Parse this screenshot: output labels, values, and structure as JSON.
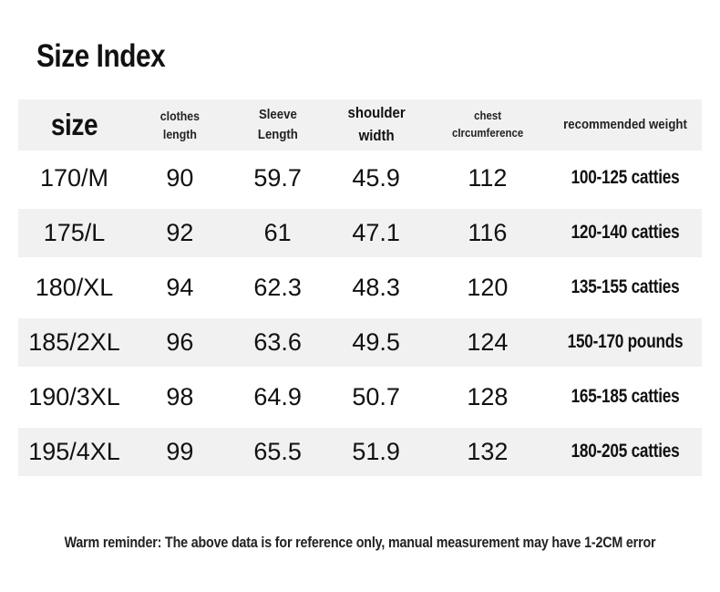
{
  "page": {
    "title": "Size Index",
    "footer_note": "Warm reminder: The above data is for reference only, manual measurement may have 1-2CM error"
  },
  "colors": {
    "stripe": "#f1f1f1",
    "text": "#1a1a1a",
    "background": "#ffffff"
  },
  "table": {
    "headers": [
      {
        "label": "size"
      },
      {
        "label": "clothes\nlength"
      },
      {
        "label": "Sleeve\nLength"
      },
      {
        "label": "shoulder\nwidth"
      },
      {
        "label": "chest\ncIrcumference"
      },
      {
        "label": "recommended weight"
      }
    ],
    "rows": [
      {
        "cells": [
          "170/M",
          "90",
          "59.7",
          "45.9",
          "112",
          "100-125 catties"
        ]
      },
      {
        "cells": [
          "175/L",
          "92",
          "61",
          "47.1",
          "116",
          "120-140 catties"
        ]
      },
      {
        "cells": [
          "180/XL",
          "94",
          "62.3",
          "48.3",
          "120",
          "135-155 catties"
        ]
      },
      {
        "cells": [
          "185/2XL",
          "96",
          "63.6",
          "49.5",
          "124",
          "150-170 pounds"
        ]
      },
      {
        "cells": [
          "190/3XL",
          "98",
          "64.9",
          "50.7",
          "128",
          "165-185 catties"
        ]
      },
      {
        "cells": [
          "195/4XL",
          "99",
          "65.5",
          "51.9",
          "132",
          "180-205 catties"
        ]
      }
    ]
  }
}
